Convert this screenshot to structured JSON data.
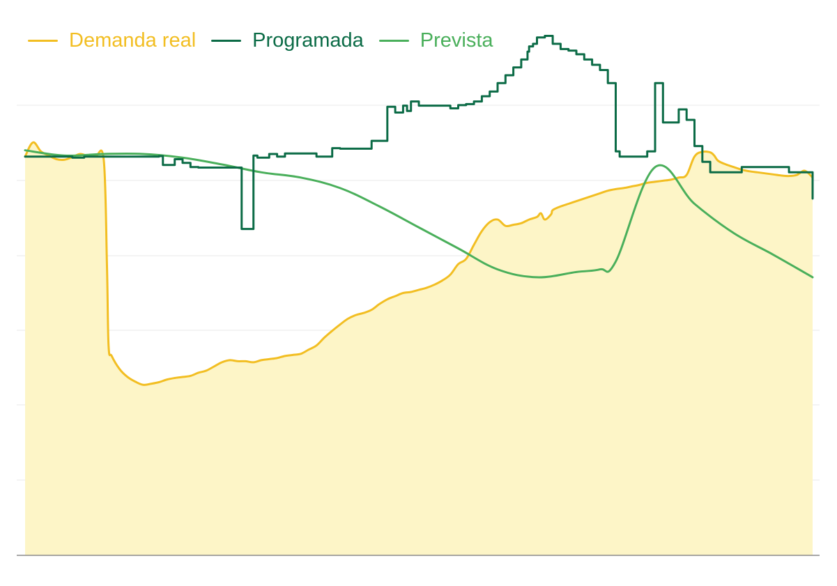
{
  "chart_data": {
    "type": "line",
    "title": "",
    "xlabel": "",
    "ylabel": "",
    "grid": true,
    "legend_position": "top-left",
    "ylim": [
      0,
      1
    ],
    "xlim": [
      0,
      100
    ],
    "series": [
      {
        "name": "Demanda real",
        "color": "#f2be22",
        "fill": "#fdf5c7",
        "area": true,
        "step": false,
        "x": [
          0,
          1,
          2,
          3,
          4,
          5,
          6,
          7,
          8,
          9,
          10,
          10.4,
          10.6,
          11,
          12,
          13,
          14,
          15,
          16,
          17,
          18,
          19,
          20,
          21,
          22,
          23,
          24,
          25,
          26,
          27,
          28,
          29,
          30,
          31,
          32,
          33,
          34,
          35,
          36,
          37,
          38,
          39,
          40,
          41,
          42,
          43,
          44,
          45,
          46,
          47,
          48,
          49,
          50,
          51,
          52,
          53,
          54,
          55,
          56,
          57,
          58,
          59,
          60,
          61,
          62,
          63,
          64,
          65,
          65.5,
          66,
          66.8,
          67,
          68,
          69,
          70,
          71,
          72,
          73,
          74,
          75,
          76,
          77,
          78,
          79,
          80,
          81,
          82,
          83,
          84,
          85,
          86,
          87,
          87.5,
          88,
          89,
          90,
          91,
          92,
          93,
          94,
          95,
          96,
          97,
          98,
          99,
          100
        ],
        "values": [
          0.76,
          0.787,
          0.77,
          0.762,
          0.755,
          0.754,
          0.759,
          0.765,
          0.761,
          0.762,
          0.752,
          0.55,
          0.4,
          0.38,
          0.355,
          0.34,
          0.331,
          0.325,
          0.327,
          0.33,
          0.335,
          0.338,
          0.34,
          0.342,
          0.348,
          0.352,
          0.36,
          0.368,
          0.372,
          0.37,
          0.37,
          0.368,
          0.372,
          0.374,
          0.376,
          0.38,
          0.382,
          0.384,
          0.392,
          0.4,
          0.415,
          0.428,
          0.44,
          0.451,
          0.458,
          0.462,
          0.468,
          0.479,
          0.488,
          0.494,
          0.5,
          0.502,
          0.506,
          0.51,
          0.516,
          0.524,
          0.535,
          0.555,
          0.565,
          0.592,
          0.618,
          0.635,
          0.64,
          0.628,
          0.63,
          0.633,
          0.64,
          0.645,
          0.652,
          0.64,
          0.65,
          0.658,
          0.665,
          0.67,
          0.675,
          0.68,
          0.685,
          0.69,
          0.695,
          0.698,
          0.7,
          0.703,
          0.706,
          0.71,
          0.712,
          0.714,
          0.716,
          0.72,
          0.725,
          0.76,
          0.769,
          0.768,
          0.762,
          0.752,
          0.745,
          0.74,
          0.735,
          0.732,
          0.73,
          0.728,
          0.726,
          0.724,
          0.723,
          0.725,
          0.733,
          0.72
        ]
      },
      {
        "name": "Programada",
        "color": "#0b6b46",
        "fill": "",
        "area": false,
        "step": true,
        "x": [
          0,
          6,
          7.5,
          17,
          17.5,
          19,
          20,
          21,
          22,
          27,
          27.5,
          29,
          29.5,
          31,
          32,
          33,
          37,
          38,
          39,
          40,
          44,
          45,
          46,
          47,
          48,
          48.5,
          49,
          50,
          54,
          55,
          56,
          57,
          58,
          59,
          60,
          61,
          62,
          63,
          63.8,
          64,
          64.5,
          65,
          66,
          67,
          68,
          69,
          70,
          71,
          72,
          73,
          74,
          75,
          75.5,
          76,
          78,
          79,
          80,
          81,
          83,
          84,
          85,
          86,
          87,
          88,
          90,
          91,
          93,
          94,
          96,
          97,
          98,
          99,
          100
        ],
        "values": [
          0.76,
          0.758,
          0.76,
          0.761,
          0.744,
          0.755,
          0.748,
          0.74,
          0.739,
          0.739,
          0.622,
          0.762,
          0.758,
          0.765,
          0.76,
          0.766,
          0.76,
          0.76,
          0.776,
          0.775,
          0.79,
          0.79,
          0.855,
          0.844,
          0.857,
          0.847,
          0.865,
          0.857,
          0.852,
          0.858,
          0.86,
          0.865,
          0.875,
          0.884,
          0.9,
          0.915,
          0.93,
          0.945,
          0.96,
          0.97,
          0.975,
          0.987,
          0.99,
          0.975,
          0.965,
          0.962,
          0.955,
          0.945,
          0.935,
          0.925,
          0.9,
          0.77,
          0.76,
          0.76,
          0.76,
          0.77,
          0.9,
          0.825,
          0.85,
          0.83,
          0.78,
          0.75,
          0.73,
          0.73,
          0.73,
          0.74,
          0.74,
          0.74,
          0.74,
          0.73,
          0.73,
          0.73,
          0.68
        ]
      },
      {
        "name": "Prevista",
        "color": "#4aaf5b",
        "fill": "",
        "area": false,
        "step": false,
        "x": [
          0,
          5,
          10,
          15,
          20,
          25,
          30,
          35,
          40,
          45,
          50,
          55,
          60,
          65,
          70,
          73,
          75,
          80,
          85,
          90,
          95,
          100
        ],
        "values": [
          0.772,
          0.762,
          0.765,
          0.765,
          0.758,
          0.745,
          0.73,
          0.72,
          0.7,
          0.665,
          0.625,
          0.585,
          0.545,
          0.53,
          0.54,
          0.545,
          0.56,
          0.74,
          0.67,
          0.614,
          0.573,
          0.53
        ]
      }
    ]
  }
}
